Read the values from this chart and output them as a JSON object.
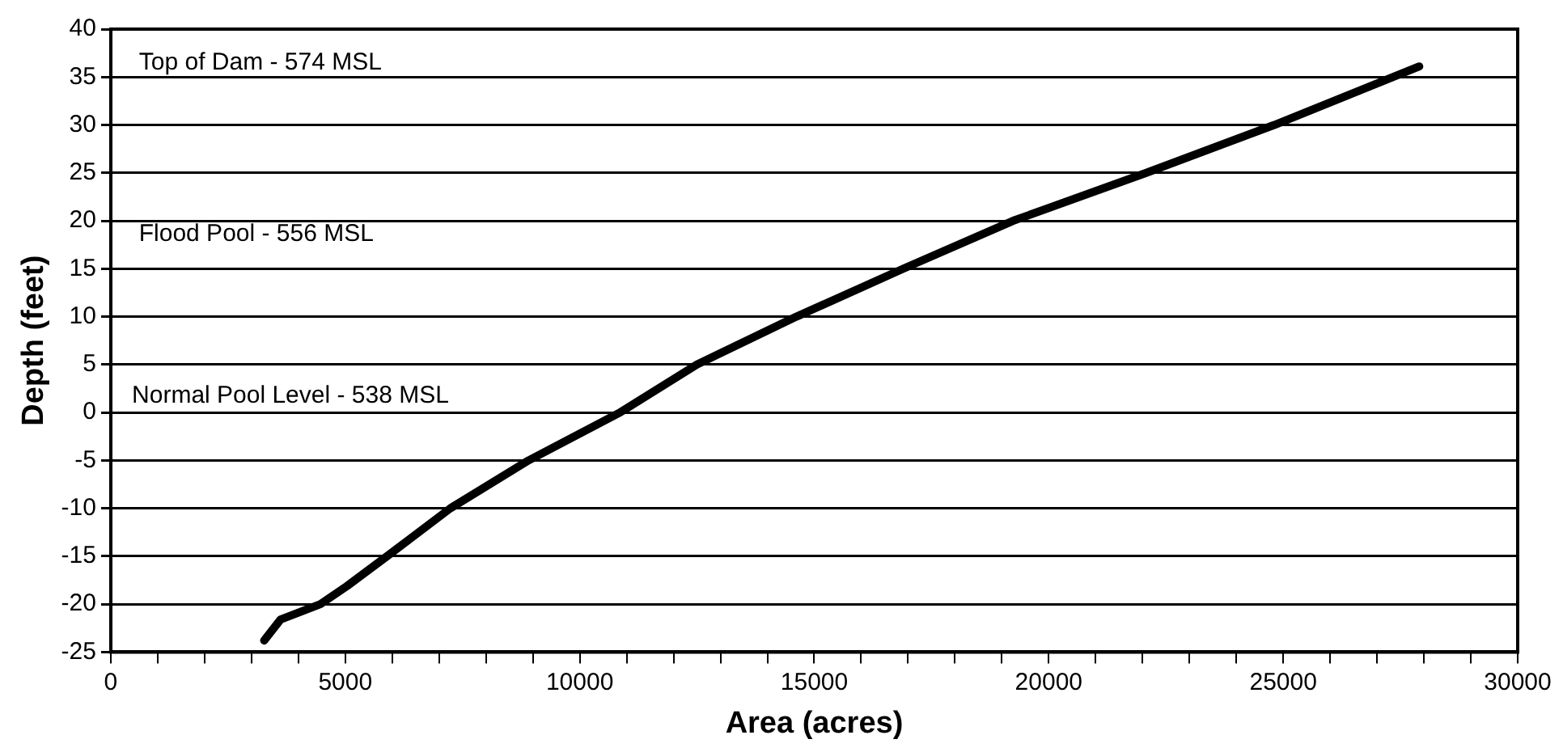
{
  "chart_data": {
    "type": "line",
    "xlabel": "Area (acres)",
    "ylabel": "Depth (feet)",
    "annotations": [
      "Top of Dam - 574 MSL",
      "Flood Pool - 556 MSL",
      "Normal Pool Level - 538 MSL"
    ],
    "x": [
      3270,
      3620,
      4470,
      5040,
      5890,
      7240,
      8910,
      10860,
      12500,
      14620,
      16900,
      19240,
      22080,
      24810,
      27900
    ],
    "series": [
      {
        "color": "#000000",
        "values": [
          -23.8,
          -21.6,
          -20,
          -18.1,
          -15,
          -10,
          -5,
          0,
          5,
          10,
          15,
          20,
          25,
          30,
          36.1
        ]
      }
    ],
    "xlim": [
      0,
      30000
    ],
    "xticks": [
      0,
      {
        "value": 1000,
        "label": null
      },
      {
        "value": 2000,
        "label": null
      },
      {
        "value": 3000,
        "label": null
      },
      {
        "value": 4000,
        "label": null
      },
      5000,
      {
        "value": 6000,
        "label": null
      },
      {
        "value": 7000,
        "label": null
      },
      {
        "value": 8000,
        "label": null
      },
      {
        "value": 9000,
        "label": null
      },
      10000,
      {
        "value": 11000,
        "label": null
      },
      {
        "value": 12000,
        "label": null
      },
      {
        "value": 13000,
        "label": null
      },
      {
        "value": 14000,
        "label": null
      },
      15000,
      {
        "value": 16000,
        "label": null
      },
      {
        "value": 17000,
        "label": null
      },
      {
        "value": 18000,
        "label": null
      },
      {
        "value": 19000,
        "label": null
      },
      20000,
      {
        "value": 21000,
        "label": null
      },
      {
        "value": 22000,
        "label": null
      },
      {
        "value": 23000,
        "label": null
      },
      {
        "value": 24000,
        "label": null
      },
      25000,
      {
        "value": 26000,
        "label": null
      },
      {
        "value": 27000,
        "label": null
      },
      {
        "value": 28000,
        "label": null
      },
      {
        "value": 29000,
        "label": null
      },
      30000
    ],
    "ylim": [
      -25,
      40
    ],
    "yticks": [
      -25,
      -20,
      -15,
      -10,
      -5,
      0,
      5,
      10,
      15,
      20,
      25,
      30,
      35,
      40
    ],
    "grid": "y",
    "legend": false,
    "marker": "none",
    "line_style": "solid"
  }
}
